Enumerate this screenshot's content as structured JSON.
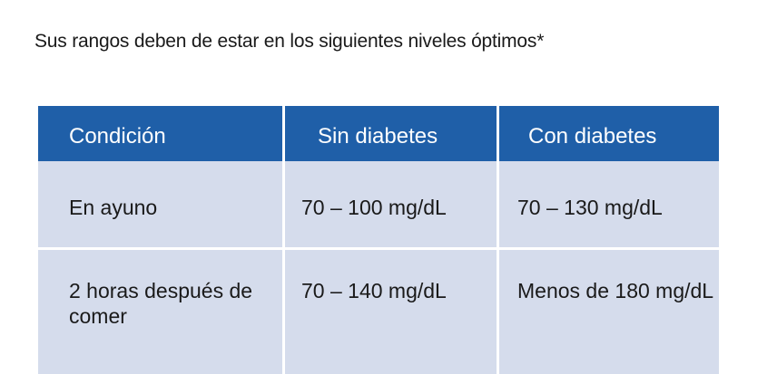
{
  "intro": {
    "text": "Sus rangos deben de estar en los siguientes niveles óptimos*"
  },
  "table": {
    "headers": [
      "Condición",
      "Sin diabetes",
      "Con diabetes"
    ],
    "rows": [
      [
        "En ayuno",
        "70 – 100 mg/dL",
        "70 – 130 mg/dL"
      ],
      [
        "2 horas después de comer",
        "70 – 140 mg/dL",
        "Menos de 180 mg/dL"
      ]
    ]
  },
  "colors": {
    "header_bg": "#1f5fa8",
    "cell_bg": "#d5dcec",
    "header_text": "#ffffff"
  }
}
